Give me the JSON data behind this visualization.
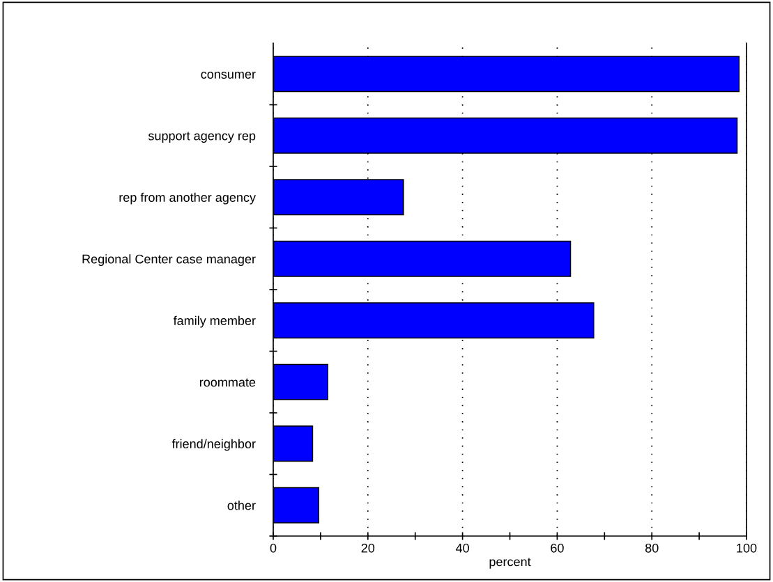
{
  "chart_data": {
    "type": "bar",
    "orientation": "horizontal",
    "xlabel": "percent",
    "categories": [
      "consumer",
      "support agency rep",
      "rep from another agency",
      "Regional Center case manager",
      "family member",
      "roommate",
      "friend/neighbor",
      "other"
    ],
    "values": [
      98.4,
      98.0,
      27.5,
      62.8,
      67.7,
      11.5,
      8.3,
      9.6
    ],
    "color": "#0000ff",
    "xlim": [
      0,
      100
    ],
    "xticks": [
      0,
      {
        "value": 10,
        "label": null
      },
      20,
      {
        "value": 30,
        "label": null
      },
      40,
      {
        "value": 50,
        "label": null
      },
      60,
      {
        "value": 70,
        "label": null
      },
      80,
      {
        "value": 90,
        "label": null
      },
      100
    ],
    "grid": "x"
  }
}
